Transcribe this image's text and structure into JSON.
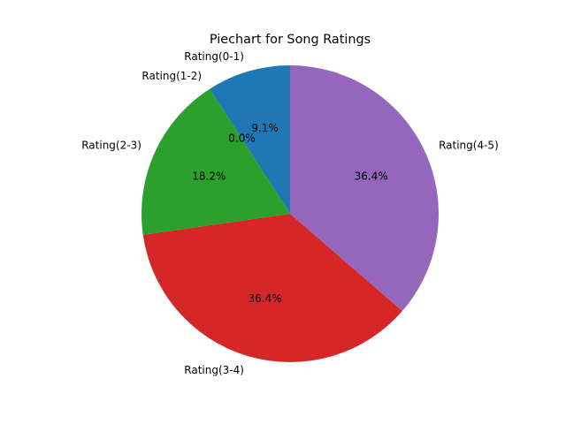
{
  "chart_data": {
    "type": "pie",
    "title": "Piechart for Song Ratings",
    "start_angle_deg": 90,
    "direction": "counterclockwise",
    "slices": [
      {
        "label": "Rating(0-1)",
        "value": 9.1,
        "pct_label": "9.1%",
        "color": "#1f77b4"
      },
      {
        "label": "Rating(1-2)",
        "value": 0.0,
        "pct_label": "0.0%",
        "color": "#ff7f0e"
      },
      {
        "label": "Rating(2-3)",
        "value": 18.2,
        "pct_label": "18.2%",
        "color": "#2ca02c"
      },
      {
        "label": "Rating(3-4)",
        "value": 36.4,
        "pct_label": "36.4%",
        "color": "#d62728"
      },
      {
        "label": "Rating(4-5)",
        "value": 36.4,
        "pct_label": "36.4%",
        "color": "#9467bd"
      }
    ]
  }
}
